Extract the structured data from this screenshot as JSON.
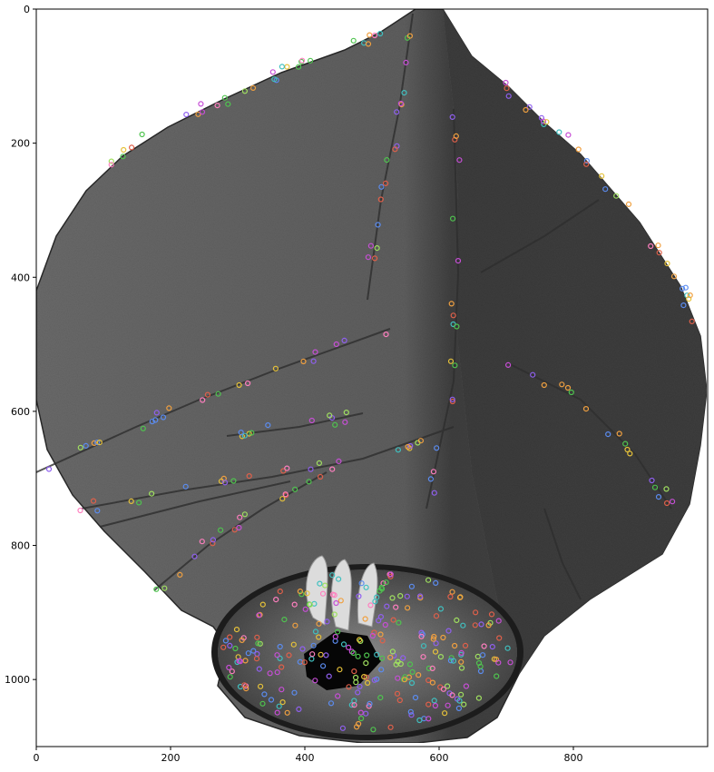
{
  "image": {
    "description_icon": "sky-lantern-photo",
    "keypoint_colors": [
      "#e0604a",
      "#4fc44f",
      "#5b8cf0",
      "#c74fd6",
      "#e6c23a",
      "#40c0c0",
      "#ff7fbf",
      "#f0a040",
      "#a0e060",
      "#9060f0"
    ]
  },
  "axes": {
    "x_ticks": [
      {
        "value": 0,
        "label": "0"
      },
      {
        "value": 200,
        "label": "200"
      },
      {
        "value": 400,
        "label": "400"
      },
      {
        "value": 600,
        "label": "600"
      },
      {
        "value": 800,
        "label": "800"
      }
    ],
    "y_ticks": [
      {
        "value": 0,
        "label": "0"
      },
      {
        "value": 200,
        "label": "200"
      },
      {
        "value": 400,
        "label": "400"
      },
      {
        "value": 600,
        "label": "600"
      },
      {
        "value": 800,
        "label": "800"
      },
      {
        "value": 1000,
        "label": "1000"
      }
    ],
    "xlim": [
      0,
      1000
    ],
    "ylim": [
      1100,
      0
    ]
  }
}
